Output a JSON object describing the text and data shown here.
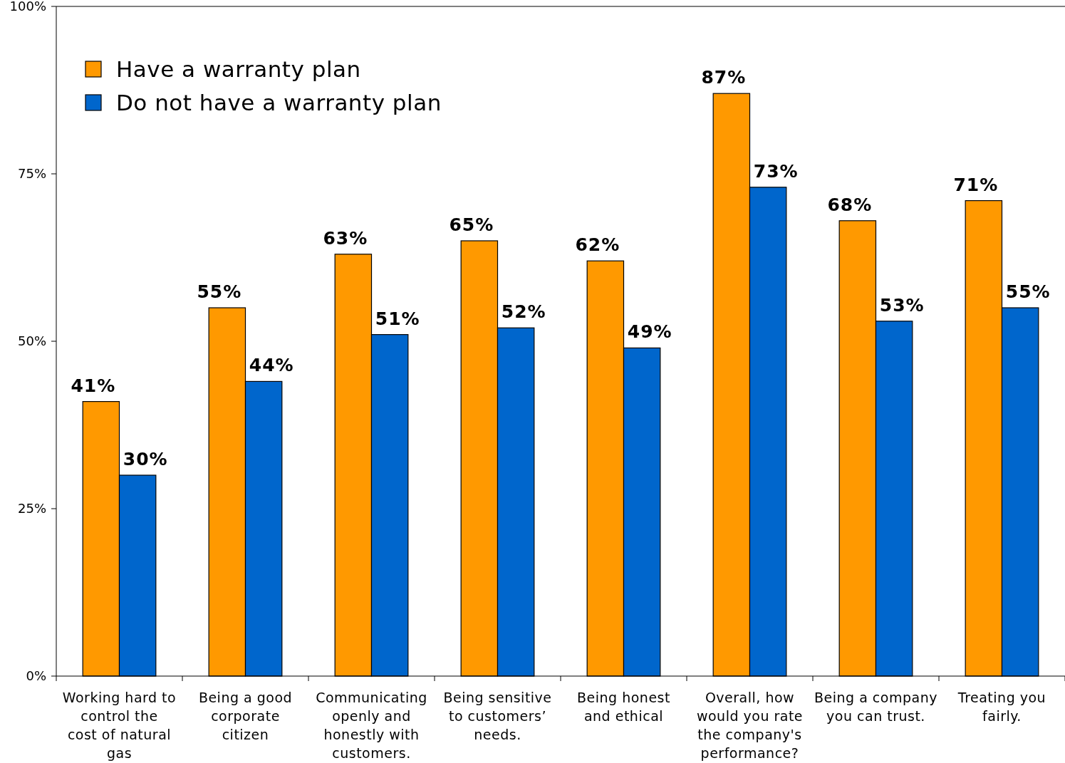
{
  "chart_data": {
    "type": "bar",
    "categories": [
      "Working hard to control the cost of natural gas",
      "Being a good corporate citizen",
      "Communicating openly and honestly with customers.",
      "Being sensitive to customers’ needs.",
      "Being honest and ethical",
      "Overall, how would you rate the company's performance?",
      "Being a company you can trust.",
      "Treating you fairly."
    ],
    "series": [
      {
        "name": "Have a warranty plan",
        "color": "#ff9900",
        "values": [
          41,
          55,
          63,
          65,
          62,
          87,
          68,
          71
        ],
        "value_labels": [
          "41%",
          "55%",
          "63%",
          "65%",
          "62%",
          "87%",
          "68%",
          "71%"
        ]
      },
      {
        "name": "Do not have a warranty plan",
        "color": "#0066cc",
        "values": [
          30,
          44,
          51,
          52,
          49,
          73,
          53,
          55
        ],
        "value_labels": [
          "30%",
          "44%",
          "51%",
          "52%",
          "49%",
          "73%",
          "53%",
          "55%"
        ]
      }
    ],
    "ylim": [
      0,
      100
    ],
    "yticks": [
      {
        "value": 0,
        "label": "0%"
      },
      {
        "value": 25,
        "label": "25%"
      },
      {
        "value": 50,
        "label": "50%"
      },
      {
        "value": 75,
        "label": "75%"
      },
      {
        "value": 100,
        "label": "100%"
      }
    ],
    "grid": false,
    "legend": "top left"
  }
}
